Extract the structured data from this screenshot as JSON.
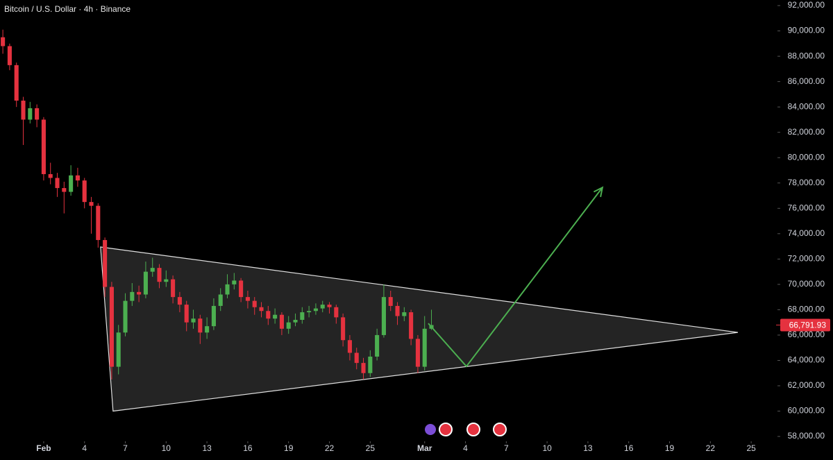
{
  "chart_data": {
    "type": "candlestick",
    "title": "Bitcoin / U.S. Dollar · 4h · Binance",
    "x": [
      -3,
      -2.5,
      -2,
      -1.5,
      -1,
      -0.5,
      0,
      0.5,
      1,
      1.5,
      2,
      2.5,
      3,
      3.5,
      4,
      4.5,
      5,
      5.5,
      6,
      6.5,
      7,
      7.5,
      8,
      8.5,
      9,
      9.5,
      10,
      10.5,
      11,
      11.5,
      12,
      12.5,
      13,
      13.5,
      14,
      14.5,
      15,
      15.5,
      16,
      16.5,
      17,
      17.5,
      18,
      18.5,
      19,
      19.5,
      20,
      20.5,
      21,
      21.5,
      22,
      22.5,
      23,
      23.5,
      24,
      24.5,
      25,
      25.5,
      26,
      26.5,
      27,
      27.5,
      28,
      28.5
    ],
    "open": [
      89500,
      88800,
      87300,
      84500,
      83000,
      83900,
      83000,
      78700,
      78400,
      77600,
      77300,
      78600,
      78200,
      76500,
      76200,
      73500,
      69800,
      63500,
      66200,
      68700,
      69400,
      69200,
      71000,
      71300,
      70200,
      70400,
      69000,
      68400,
      67000,
      67300,
      66200,
      66700,
      68300,
      69200,
      70000,
      70300,
      69000,
      68700,
      68200,
      67900,
      67300,
      67600,
      66500,
      67000,
      67200,
      67800,
      67900,
      68100,
      68400,
      68200,
      67400,
      65600,
      64600,
      63800,
      63000,
      64300,
      66000,
      69000,
      68300,
      67500,
      67800,
      65700,
      63500,
      66500
    ],
    "high": [
      90100,
      89000,
      87500,
      84800,
      84400,
      84200,
      83200,
      79600,
      78800,
      78100,
      79400,
      79200,
      78400,
      76900,
      76400,
      73700,
      70200,
      66800,
      69300,
      70100,
      69900,
      71800,
      72100,
      71600,
      71100,
      70700,
      69400,
      68700,
      68000,
      67600,
      67400,
      68900,
      69700,
      70800,
      70900,
      70500,
      69500,
      69000,
      68600,
      68300,
      68100,
      67800,
      67500,
      67700,
      68200,
      68300,
      68500,
      68700,
      68600,
      68400,
      67700,
      66000,
      65000,
      64200,
      64800,
      66500,
      70000,
      69500,
      68600,
      68200,
      68000,
      66000,
      67500,
      68000
    ],
    "low": [
      88200,
      86900,
      84000,
      81000,
      82700,
      82400,
      78200,
      77900,
      76900,
      75600,
      77000,
      77700,
      76000,
      74000,
      72900,
      69000,
      62500,
      62900,
      65900,
      68300,
      68600,
      68900,
      70600,
      69700,
      69800,
      68500,
      67800,
      66300,
      66500,
      65300,
      65700,
      66400,
      67900,
      68900,
      69600,
      68600,
      68100,
      67600,
      67400,
      66800,
      66900,
      66000,
      66100,
      66700,
      66900,
      67400,
      67600,
      67800,
      67700,
      66900,
      65100,
      64000,
      63300,
      62500,
      62700,
      64000,
      65800,
      67900,
      66800,
      67100,
      65200,
      63000,
      63200,
      66400
    ],
    "close": [
      88800,
      87300,
      84500,
      83000,
      83900,
      83000,
      78700,
      78400,
      77600,
      77300,
      78600,
      78200,
      76500,
      76200,
      73500,
      69800,
      63500,
      66200,
      68700,
      69400,
      69200,
      71000,
      71300,
      70200,
      70400,
      69000,
      68400,
      67000,
      67300,
      66200,
      66700,
      68300,
      69200,
      70000,
      70300,
      69000,
      68700,
      68200,
      67900,
      67300,
      67600,
      66500,
      67000,
      67200,
      67800,
      67900,
      68100,
      68400,
      68200,
      67400,
      65600,
      64600,
      63800,
      63000,
      64300,
      66000,
      69000,
      68300,
      67500,
      67800,
      65700,
      63500,
      66500,
      66791.93
    ],
    "up_color": "#4caf50",
    "down_color": "#e5323f",
    "last_price": {
      "value": 66791.93,
      "label": "66,791.93"
    },
    "triangle": {
      "x": [
        4.18,
        5.1,
        51.02
      ],
      "y": [
        72950,
        60000,
        66210
      ]
    },
    "projection": {
      "color": "#4caf50",
      "x": [
        28.27,
        31.07,
        41.07
      ],
      "y": [
        66920,
        63530,
        77650
      ]
    },
    "xlim": [
      -3.21,
      53.83
    ],
    "ylim": [
      57620,
      92440
    ],
    "xticks": [
      {
        "value": 0,
        "label": "Feb"
      },
      {
        "value": 3,
        "label": "4"
      },
      {
        "value": 6,
        "label": "7"
      },
      {
        "value": 9,
        "label": "10"
      },
      {
        "value": 12,
        "label": "13"
      },
      {
        "value": 15,
        "label": "16"
      },
      {
        "value": 18,
        "label": "19"
      },
      {
        "value": 21,
        "label": "22"
      },
      {
        "value": 24,
        "label": "25"
      },
      {
        "value": 28,
        "label": "Mar"
      },
      {
        "value": 31,
        "label": "4"
      },
      {
        "value": 34,
        "label": "7"
      },
      {
        "value": 37,
        "label": "10"
      },
      {
        "value": 40,
        "label": "13"
      },
      {
        "value": 43,
        "label": "16"
      },
      {
        "value": 46,
        "label": "19"
      },
      {
        "value": 49,
        "label": "22"
      },
      {
        "value": 52,
        "label": "25"
      }
    ],
    "yticks": [
      {
        "value": 58000,
        "label": "58,000.00"
      },
      {
        "value": 60000,
        "label": "60,000.00"
      },
      {
        "value": 62000,
        "label": "62,000.00"
      },
      {
        "value": 64000,
        "label": "64,000.00"
      },
      {
        "value": 66000,
        "label": "66,000.00"
      },
      {
        "value": 68000,
        "label": "68,000.00"
      },
      {
        "value": 70000,
        "label": "70,000.00"
      },
      {
        "value": 72000,
        "label": "72,000.00"
      },
      {
        "value": 74000,
        "label": "74,000.00"
      },
      {
        "value": 76000,
        "label": "76,000.00"
      },
      {
        "value": 78000,
        "label": "78,000.00"
      },
      {
        "value": 80000,
        "label": "80,000.00"
      },
      {
        "value": 82000,
        "label": "82,000.00"
      },
      {
        "value": 84000,
        "label": "84,000.00"
      },
      {
        "value": 86000,
        "label": "86,000.00"
      },
      {
        "value": 88000,
        "label": "88,000.00"
      },
      {
        "value": 90000,
        "label": "90,000.00"
      },
      {
        "value": 92000,
        "label": "92,000.00"
      }
    ]
  }
}
